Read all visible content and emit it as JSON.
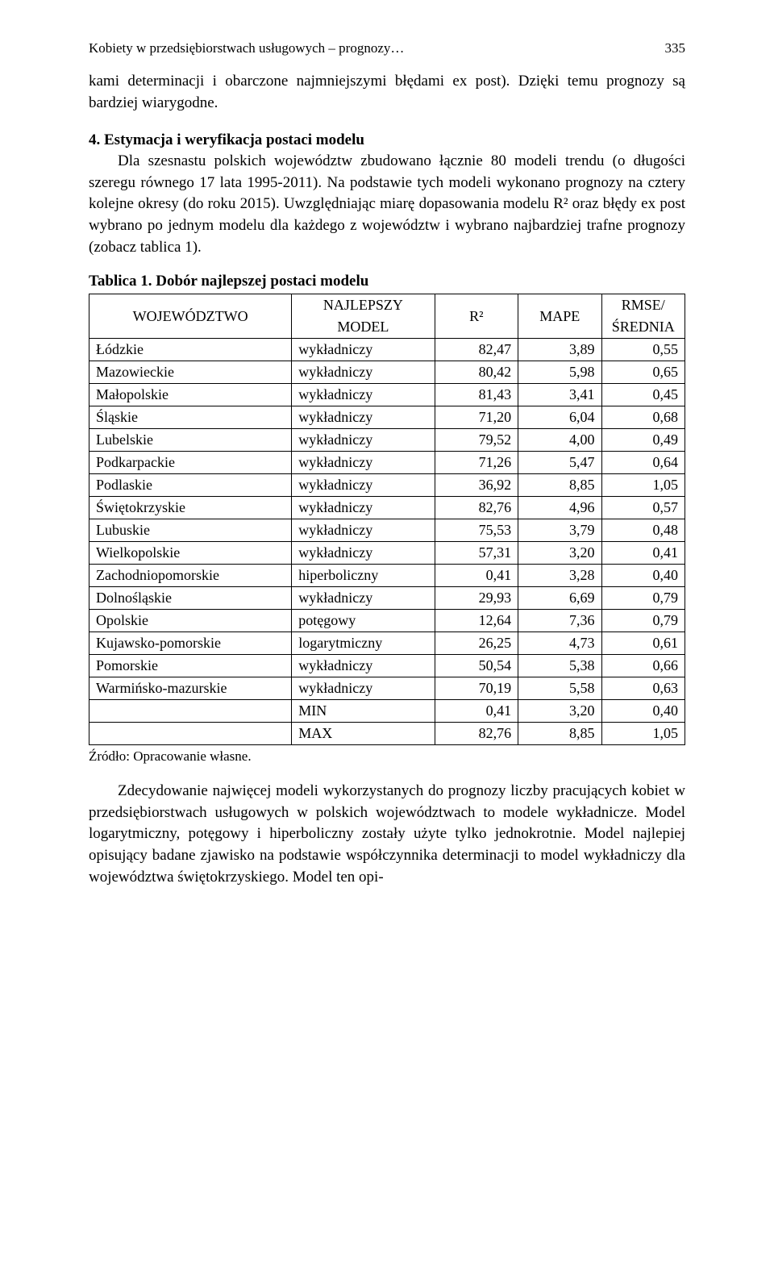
{
  "runningHead": {
    "title": "Kobiety w przedsiębiorstwach usługowych – prognozy…",
    "pageNumber": "335"
  },
  "intro": "kami determinacji i obarczone najmniejszymi błędami ex post). Dzięki temu prognozy są bardziej wiarygodne.",
  "section": {
    "number": "4.",
    "title": "Estymacja i weryfikacja postaci modelu",
    "body": "Dla szesnastu polskich województw zbudowano łącznie 80 modeli trendu (o długości szeregu równego 17 lata 1995-2011). Na podstawie tych modeli wykonano prognozy na cztery kolejne okresy (do roku 2015). Uwzględniając miarę dopasowania modelu R² oraz błędy ex post wybrano po jednym modelu dla każdego z województw i wybrano najbardziej trafne prognozy (zobacz tablica 1)."
  },
  "table": {
    "caption": "Tablica 1. Dobór najlepszej postaci modelu",
    "headers": {
      "woj": "WOJEWÓDZTWO",
      "model1": "NAJLEPSZY",
      "model2": "MODEL",
      "r2": "R²",
      "mape": "MAPE",
      "rmse1": "RMSE/",
      "rmse2": "ŚREDNIA"
    },
    "rows": [
      {
        "woj": "Łódzkie",
        "model": "wykładniczy",
        "r2": "82,47",
        "mape": "3,89",
        "rmse": "0,55"
      },
      {
        "woj": "Mazowieckie",
        "model": "wykładniczy",
        "r2": "80,42",
        "mape": "5,98",
        "rmse": "0,65"
      },
      {
        "woj": "Małopolskie",
        "model": "wykładniczy",
        "r2": "81,43",
        "mape": "3,41",
        "rmse": "0,45"
      },
      {
        "woj": "Śląskie",
        "model": "wykładniczy",
        "r2": "71,20",
        "mape": "6,04",
        "rmse": "0,68"
      },
      {
        "woj": "Lubelskie",
        "model": "wykładniczy",
        "r2": "79,52",
        "mape": "4,00",
        "rmse": "0,49"
      },
      {
        "woj": "Podkarpackie",
        "model": "wykładniczy",
        "r2": "71,26",
        "mape": "5,47",
        "rmse": "0,64"
      },
      {
        "woj": "Podlaskie",
        "model": "wykładniczy",
        "r2": "36,92",
        "mape": "8,85",
        "rmse": "1,05"
      },
      {
        "woj": "Świętokrzyskie",
        "model": "wykładniczy",
        "r2": "82,76",
        "mape": "4,96",
        "rmse": "0,57"
      },
      {
        "woj": "Lubuskie",
        "model": "wykładniczy",
        "r2": "75,53",
        "mape": "3,79",
        "rmse": "0,48"
      },
      {
        "woj": "Wielkopolskie",
        "model": "wykładniczy",
        "r2": "57,31",
        "mape": "3,20",
        "rmse": "0,41"
      },
      {
        "woj": "Zachodniopomorskie",
        "model": "hiperboliczny",
        "r2": "0,41",
        "mape": "3,28",
        "rmse": "0,40"
      },
      {
        "woj": "Dolnośląskie",
        "model": "wykładniczy",
        "r2": "29,93",
        "mape": "6,69",
        "rmse": "0,79"
      },
      {
        "woj": "Opolskie",
        "model": "potęgowy",
        "r2": "12,64",
        "mape": "7,36",
        "rmse": "0,79"
      },
      {
        "woj": "Kujawsko-pomorskie",
        "model": "logarytmiczny",
        "r2": "26,25",
        "mape": "4,73",
        "rmse": "0,61"
      },
      {
        "woj": "Pomorskie",
        "model": "wykładniczy",
        "r2": "50,54",
        "mape": "5,38",
        "rmse": "0,66"
      },
      {
        "woj": "Warmińsko-mazurskie",
        "model": "wykładniczy",
        "r2": "70,19",
        "mape": "5,58",
        "rmse": "0,63"
      }
    ],
    "summary": [
      {
        "label": "MIN",
        "r2": "0,41",
        "mape": "3,20",
        "rmse": "0,40"
      },
      {
        "label": "MAX",
        "r2": "82,76",
        "mape": "8,85",
        "rmse": "1,05"
      }
    ],
    "source": "Źródło: Opracowanie własne."
  },
  "after": "Zdecydowanie najwięcej modeli wykorzystanych do prognozy liczby pracujących kobiet w przedsiębiorstwach usługowych w polskich województwach to modele wykładnicze. Model logarytmiczny, potęgowy i hiperboliczny zostały użyte tylko jednokrotnie. Model najlepiej opisujący badane zjawisko na podstawie współczynnika determinacji to model wykładniczy dla województwa świętokrzyskiego. Model ten opi-"
}
